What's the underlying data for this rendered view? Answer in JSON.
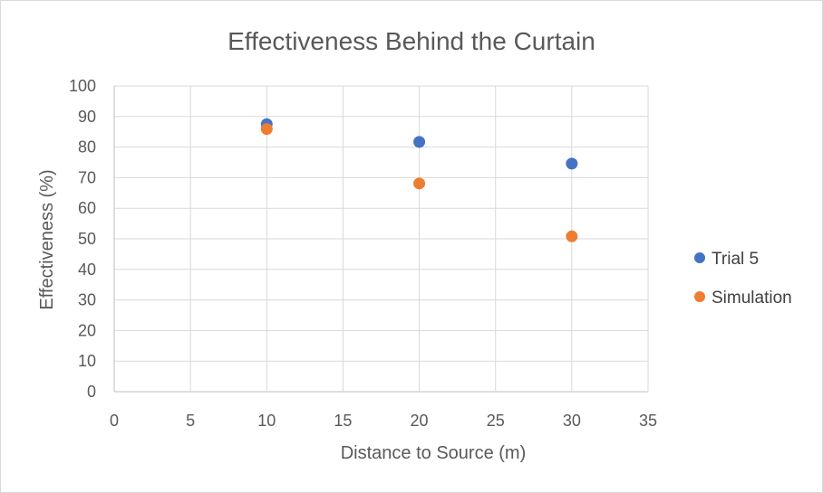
{
  "chart_data": {
    "type": "scatter",
    "title": "Effectiveness Behind the Curtain",
    "xlabel": "Distance to Source (m)",
    "ylabel": "Effectiveness (%)",
    "xlim": [
      0,
      35
    ],
    "ylim": [
      0,
      100
    ],
    "x_ticks": [
      0,
      5,
      10,
      15,
      20,
      25,
      30,
      35
    ],
    "y_ticks": [
      0,
      10,
      20,
      30,
      40,
      50,
      60,
      70,
      80,
      90,
      100
    ],
    "grid": true,
    "legend_position": "right",
    "series": [
      {
        "name": "Trial 5",
        "color": "#4472C4",
        "x": [
          10,
          20,
          30
        ],
        "y": [
          87.5,
          81.7,
          74.6
        ]
      },
      {
        "name": "Simulation",
        "color": "#ED7D31",
        "x": [
          10,
          20,
          30
        ],
        "y": [
          85.9,
          68.1,
          50.8
        ]
      }
    ]
  }
}
